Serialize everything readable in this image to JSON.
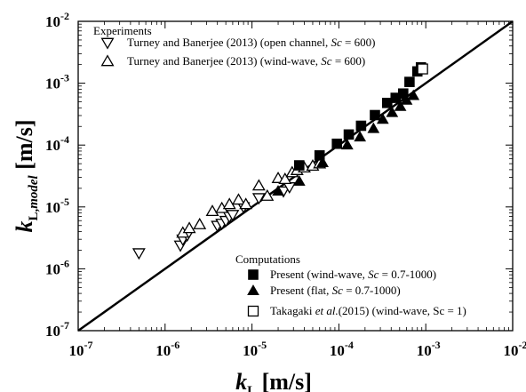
{
  "chart_data": {
    "type": "scatter",
    "x_scale": "log",
    "y_scale": "log",
    "xlim": [
      1e-07,
      0.01
    ],
    "ylim": [
      1e-07,
      0.01
    ],
    "grid": false,
    "xlabel": {
      "main": "k",
      "sub": "L",
      "unit": " [m/s]"
    },
    "ylabel": {
      "main": "k",
      "sub": "L,",
      "sub_italic": "model",
      "unit": " [m/s]"
    },
    "ticks": [
      {
        "exp": "-7",
        "value": 1e-07
      },
      {
        "exp": "-6",
        "value": 1e-06
      },
      {
        "exp": "-5",
        "value": 1e-05
      },
      {
        "exp": "-4",
        "value": 0.0001
      },
      {
        "exp": "-3",
        "value": 0.001
      },
      {
        "exp": "-2",
        "value": 0.01
      }
    ],
    "tick_base": "10",
    "reference_line": {
      "label": "",
      "x": [
        1e-07,
        0.01
      ],
      "y": [
        1e-07,
        0.01
      ]
    },
    "legend_groups": [
      {
        "title": "Experiments",
        "position": "top-left",
        "entries": [
          {
            "series": "open",
            "pre": "Turney and Banerjee (2013) (open channel, ",
            "it": "Sc",
            "post": " = 600)"
          },
          {
            "series": "wind",
            "pre": "Turney and Banerjee (2013) (wind-wave, ",
            "it": "Sc",
            "post": " = 600)"
          }
        ]
      },
      {
        "title": "Computations",
        "position": "bottom-right",
        "entries": [
          {
            "series": "present_ww",
            "pre": "Present (wind-wave, ",
            "it": "Sc",
            "post": " = 0.7-1000)"
          },
          {
            "series": "present_flat",
            "pre": "Present (flat, ",
            "it": "Sc",
            "post": " = 0.7-1000)"
          },
          {
            "series": "takagaki",
            "pre": "Takagaki ",
            "it": "et al.",
            "post": "(2015) (wind-wave, Sc = 1)"
          }
        ]
      }
    ],
    "series": [
      {
        "id": "open",
        "marker": "triangle-down-open",
        "x": [
          5e-07,
          1.5e-06,
          1.6e-06,
          1.8e-06,
          4e-06,
          4.5e-06,
          5e-06,
          5.5e-06,
          6e-06,
          8e-06,
          1.2e-05,
          2.3e-05,
          2.7e-05
        ],
        "y": [
          1.8e-06,
          2.4e-06,
          3e-06,
          3.5e-06,
          5e-06,
          5.4e-06,
          6e-06,
          7e-06,
          7.5e-06,
          1e-05,
          1.4e-05,
          1.8e-05,
          2.1e-05
        ]
      },
      {
        "id": "wind",
        "marker": "triangle-up-open",
        "x": [
          1.6e-06,
          1.9e-06,
          2.5e-06,
          3.5e-06,
          4.5e-06,
          5.5e-06,
          7e-06,
          8.5e-06,
          1.2e-05,
          1.5e-05,
          2e-05,
          2.4e-05,
          2.9e-05,
          3.3e-05,
          4e-05,
          5e-05,
          6e-05
        ],
        "y": [
          3.8e-06,
          4.5e-06,
          5.2e-06,
          8.5e-06,
          9.5e-06,
          1.1e-05,
          1.3e-05,
          1.1e-05,
          2.2e-05,
          1.5e-05,
          2.9e-05,
          2.8e-05,
          3.6e-05,
          3.9e-05,
          4.3e-05,
          4.6e-05,
          5e-05
        ]
      },
      {
        "id": "present_ww",
        "marker": "square-filled",
        "x": [
          3.5e-05,
          6e-05,
          9.5e-05,
          0.00013,
          0.00018,
          0.00026,
          0.00036,
          0.00045,
          0.00055,
          0.00065,
          0.0008,
          0.00088
        ],
        "y": [
          4.7e-05,
          6.8e-05,
          0.000105,
          0.000148,
          0.000205,
          0.000305,
          0.00048,
          0.00058,
          0.00068,
          0.00105,
          0.00155,
          0.0018
        ]
      },
      {
        "id": "present_flat",
        "marker": "triangle-up-filled",
        "x": [
          2e-05,
          3.5e-05,
          6.5e-05,
          0.000125,
          0.000175,
          0.00025,
          0.00032,
          0.00041,
          0.00051,
          0.0006,
          0.00072
        ],
        "y": [
          1.8e-05,
          2.6e-05,
          5.2e-05,
          0.0001,
          0.000135,
          0.000185,
          0.00026,
          0.000335,
          0.00042,
          0.00053,
          0.00063
        ]
      },
      {
        "id": "takagaki",
        "marker": "square-open",
        "x": [
          0.00092
        ],
        "y": [
          0.0017
        ]
      }
    ]
  }
}
